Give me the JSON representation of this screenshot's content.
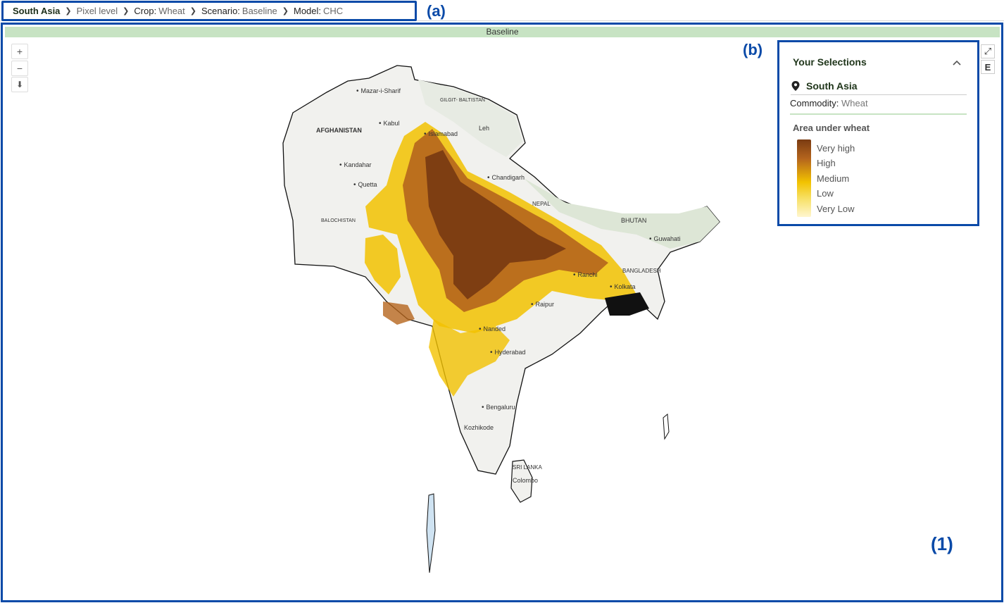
{
  "breadcrumb": {
    "region": "South Asia",
    "level": "Pixel level",
    "crop_key": "Crop:",
    "crop_val": "Wheat",
    "scenario_key": "Scenario:",
    "scenario_val": "Baseline",
    "model_key": "Model:",
    "model_val": "CHC"
  },
  "annotations": {
    "a": "(a)",
    "b": "(b)",
    "one": "(1)"
  },
  "map": {
    "scenario_title": "Baseline",
    "controls": {
      "zoom_in": "+",
      "zoom_out": "−",
      "download": "⬇"
    },
    "buttons": {
      "expand": "⤢",
      "export": "E"
    },
    "labels": {
      "afghanistan": "AFGHANISTAN",
      "kabul": "Kabul",
      "islamabad": "Islamabad",
      "kandahar": "Kandahar",
      "quetta": "Quetta",
      "mazar": "Mazar-i-Sharif",
      "gilgit": "GILGIT-\nBALTISTAN",
      "leh": "Leh",
      "balochistan": "BALOCHISTAN",
      "chandigarh": "Chandigarh",
      "bhutan": "BHUTAN",
      "guwahati": "Guwahati",
      "ranchi": "Ranchi",
      "kolkata": "Kolkata",
      "raipur": "Raipur",
      "nanded": "Nanded",
      "hyderabad": "Hyderabad",
      "bengaluru": "Bengaluru",
      "kozhikode": "Kozhikode",
      "srilanka": "SRI LANKA",
      "colombo": "Colombo",
      "nepal": "NEPAL",
      "bangladesh": "BANGLADESH"
    }
  },
  "selections": {
    "title": "Your Selections",
    "region": "South Asia",
    "commodity_key": "Commodity:",
    "commodity_val": "Wheat",
    "legend_title": "Area under wheat",
    "legend": [
      "Very high",
      "High",
      "Medium",
      "Low",
      "Very Low"
    ]
  },
  "colors": {
    "accent_border": "#0a4aa8",
    "scenario_bar": "#c7e3c3",
    "very_high": "#7a3b12",
    "high": "#b5651d",
    "medium": "#f2c200",
    "low": "#f7df60",
    "very_low": "#fff6cf"
  }
}
